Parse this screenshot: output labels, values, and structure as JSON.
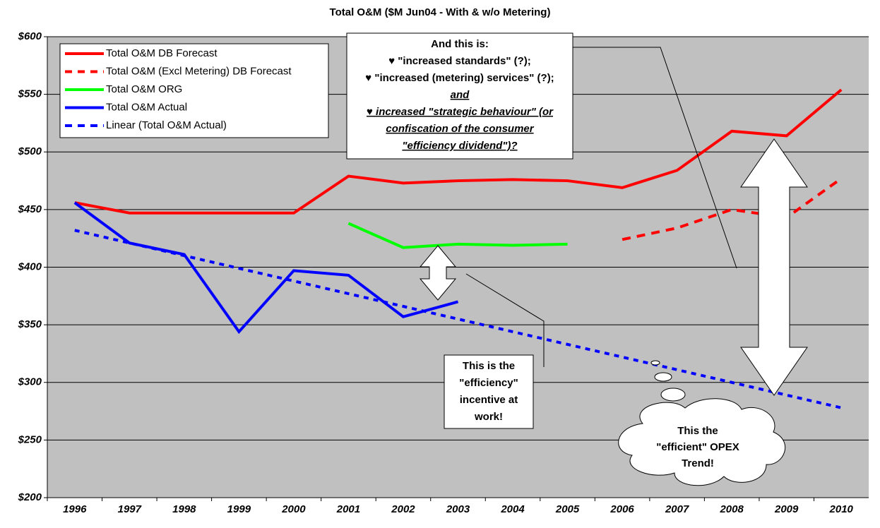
{
  "chart_data": {
    "type": "line",
    "title": "Total O&M ($M Jun04 - With & w/o Metering)",
    "categories": [
      "1996",
      "1997",
      "1998",
      "1999",
      "2000",
      "2001",
      "2002",
      "2003",
      "2004",
      "2005",
      "2006",
      "2007",
      "2008",
      "2009",
      "2010"
    ],
    "series": [
      {
        "name": "Total O&M DB Forecast",
        "color": "#ff0000",
        "dash": false,
        "values": [
          456,
          447,
          447,
          447,
          447,
          479,
          473,
          475,
          476,
          475,
          469,
          484,
          518,
          514,
          554
        ]
      },
      {
        "name": "Total O&M (Excl Metering) DB Forecast",
        "color": "#ff0000",
        "dash": true,
        "values": [
          null,
          null,
          null,
          null,
          null,
          null,
          null,
          null,
          null,
          null,
          424,
          434,
          450,
          443,
          477
        ]
      },
      {
        "name": "Total O&M ORG",
        "color": "#00ff00",
        "dash": false,
        "values": [
          null,
          null,
          null,
          null,
          null,
          438,
          417,
          420,
          419,
          420,
          null,
          null,
          null,
          null,
          null
        ]
      },
      {
        "name": "Total O&M Actual",
        "color": "#0000ff",
        "dash": false,
        "values": [
          456,
          421,
          411,
          344,
          397,
          393,
          357,
          370,
          null,
          null,
          null,
          null,
          null,
          null,
          null
        ]
      },
      {
        "name": "Linear (Total O&M Actual)",
        "color": "#0000ff",
        "dash": true,
        "values": [
          432,
          421,
          410,
          399,
          388,
          377,
          366,
          355,
          344,
          333,
          322,
          311,
          300,
          289,
          278
        ]
      }
    ],
    "ylim": [
      200,
      600
    ],
    "yticks": [
      {
        "value": 200,
        "label": "$200"
      },
      {
        "value": 250,
        "label": "$250"
      },
      {
        "value": 300,
        "label": "$300"
      },
      {
        "value": 350,
        "label": "$350"
      },
      {
        "value": 400,
        "label": "$400"
      },
      {
        "value": 450,
        "label": "$450"
      },
      {
        "value": 500,
        "label": "$500"
      },
      {
        "value": 550,
        "label": "$550"
      },
      {
        "value": 600,
        "label": "$600"
      }
    ],
    "grid": true,
    "legend": "top-left",
    "annotations": [
      {
        "lines": [
          "And this is:",
          "♥ \"increased standards\" (?);",
          "♥ \"increased (metering) services\" (?);",
          "and",
          "♥ increased \"strategic behaviour\" (or",
          "confiscation of the consumer",
          "\"efficiency dividend\")?"
        ]
      },
      {
        "lines": [
          "This is the",
          "\"efficiency\"",
          "incentive at",
          "work!"
        ]
      },
      {
        "lines": [
          "This the",
          "\"efficient\"  OPEX",
          "Trend!"
        ]
      }
    ]
  }
}
